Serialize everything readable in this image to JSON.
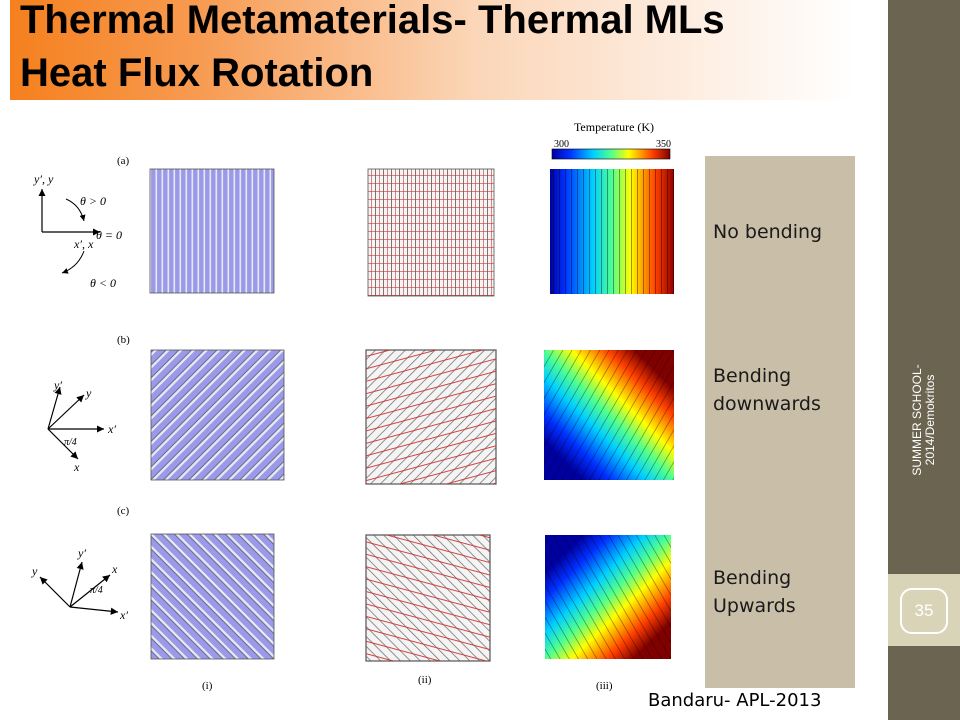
{
  "slide": {
    "title_line1": "Thermal Metamaterials- Thermal MLs",
    "title_line2": "Heat Flux Rotation",
    "sidebar_text_line1": "SUMMER SCHOOL-",
    "sidebar_text_line2": "2014/Demokritos",
    "page_number": "35",
    "citation": "Bandaru- APL-2013"
  },
  "figure": {
    "colorbar_title": "Temperature (K)",
    "colorbar_min": "300",
    "colorbar_max": "350",
    "row_labels": [
      "(a)",
      "(b)",
      "(c)"
    ],
    "column_labels": [
      "(i)",
      "(ii)",
      "(iii)"
    ],
    "axes_a": {
      "y": "y′, y",
      "x": "x′, x",
      "theta_pos": "θ > 0",
      "theta_zero": "θ = 0",
      "theta_neg": "θ < 0"
    },
    "axes_b": {
      "yp": "y′",
      "y": "y",
      "xp": "x′",
      "x": "x",
      "angle": "π/4"
    },
    "axes_c": {
      "y": "y",
      "yp": "y′",
      "x": "x",
      "xp": "x′",
      "angle": "π/4"
    }
  },
  "side_panel": {
    "row1": "No bending",
    "row2_line1": "Bending",
    "row2_line2": "downwards",
    "row3_line1": "Bending",
    "row3_line2": "Upwards"
  }
}
